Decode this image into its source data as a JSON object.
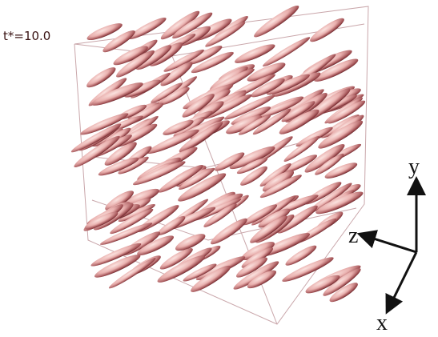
{
  "time_label": "t*=10.0",
  "axes": {
    "y": "y",
    "z": "z",
    "x": "x"
  }
}
